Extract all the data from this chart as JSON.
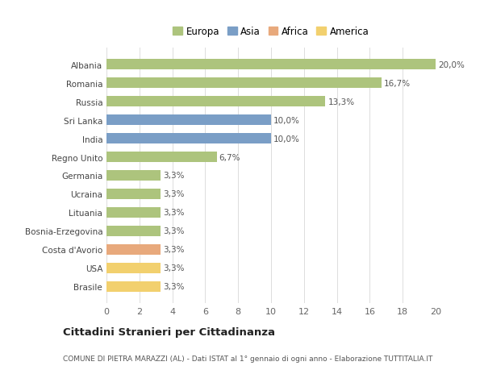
{
  "categories": [
    "Albania",
    "Romania",
    "Russia",
    "Sri Lanka",
    "India",
    "Regno Unito",
    "Germania",
    "Ucraina",
    "Lituania",
    "Bosnia-Erzegovina",
    "Costa d'Avorio",
    "USA",
    "Brasile"
  ],
  "values": [
    20.0,
    16.7,
    13.3,
    10.0,
    10.0,
    6.7,
    3.3,
    3.3,
    3.3,
    3.3,
    3.3,
    3.3,
    3.3
  ],
  "labels": [
    "20,0%",
    "16,7%",
    "13,3%",
    "10,0%",
    "10,0%",
    "6,7%",
    "3,3%",
    "3,3%",
    "3,3%",
    "3,3%",
    "3,3%",
    "3,3%",
    "3,3%"
  ],
  "colors": [
    "#adc47d",
    "#adc47d",
    "#adc47d",
    "#7a9ec6",
    "#7a9ec6",
    "#adc47d",
    "#adc47d",
    "#adc47d",
    "#adc47d",
    "#adc47d",
    "#e8a97c",
    "#f2d06e",
    "#f2d06e"
  ],
  "legend_labels": [
    "Europa",
    "Asia",
    "Africa",
    "America"
  ],
  "legend_colors": [
    "#adc47d",
    "#7a9ec6",
    "#e8a97c",
    "#f2d06e"
  ],
  "title": "Cittadini Stranieri per Cittadinanza",
  "subtitle": "COMUNE DI PIETRA MARAZZI (AL) - Dati ISTAT al 1° gennaio di ogni anno - Elaborazione TUTTITALIA.IT",
  "xlim": [
    0,
    20
  ],
  "xticks": [
    0,
    2,
    4,
    6,
    8,
    10,
    12,
    14,
    16,
    18,
    20
  ],
  "background_color": "#ffffff",
  "grid_color": "#dddddd"
}
